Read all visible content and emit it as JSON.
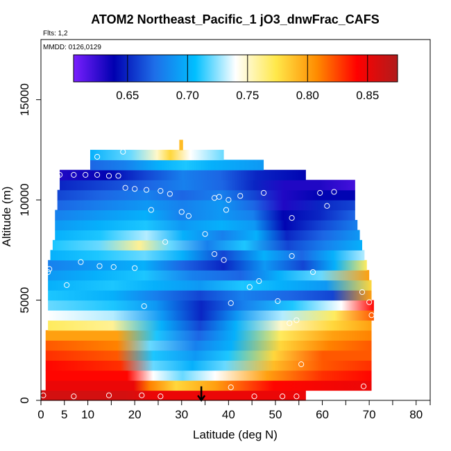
{
  "chart_data": {
    "type": "heatmap",
    "title": "ATOM2 Northeast_Pacific_1 jO3_dnwFrac_CAFS",
    "flights_label": "Flts: 1,2",
    "dates_label": "MMDD: 0126,0129",
    "xlabel": "Latitude (deg N)",
    "ylabel": "Altitude (m)",
    "xlim": [
      0,
      83
    ],
    "ylim": [
      0,
      18000
    ],
    "x_ticks": [
      0,
      5,
      10,
      20,
      30,
      40,
      50,
      60,
      70,
      80
    ],
    "x_minor_ticks": [
      15,
      25,
      35,
      45,
      55,
      65,
      75,
      83
    ],
    "y_ticks": [
      0,
      5000,
      10000,
      15000
    ],
    "colorbar": {
      "min": 0.605,
      "max": 0.875,
      "ticks": [
        "0.65",
        "0.70",
        "0.75",
        "0.80",
        "0.85"
      ],
      "tick_values": [
        0.65,
        0.7,
        0.75,
        0.8,
        0.85
      ],
      "colors": [
        "#7a1fff",
        "#0000b0",
        "#1e6ee8",
        "#00bfff",
        "#ffffff",
        "#ffe84a",
        "#ff8c00",
        "#ff0000",
        "#b01c1c"
      ]
    },
    "rows": [
      {
        "y0": 0,
        "y1": 500,
        "x0": 0,
        "x1": 56.5,
        "stops": [
          [
            0,
            0.86
          ],
          [
            0.32,
            0.86
          ],
          [
            0.42,
            0.85
          ],
          [
            0.7,
            0.85
          ],
          [
            1,
            0.85
          ]
        ]
      },
      {
        "y0": 500,
        "y1": 1000,
        "x0": 1,
        "x1": 70.5,
        "stops": [
          [
            0,
            0.85
          ],
          [
            0.27,
            0.85
          ],
          [
            0.32,
            0.81
          ],
          [
            0.4,
            0.78
          ],
          [
            0.52,
            0.8
          ],
          [
            0.7,
            0.84
          ],
          [
            1,
            0.85
          ]
        ]
      },
      {
        "y0": 1000,
        "y1": 1500,
        "x0": 1,
        "x1": 70.5,
        "stops": [
          [
            0,
            0.84
          ],
          [
            0.25,
            0.84
          ],
          [
            0.33,
            0.74
          ],
          [
            0.42,
            0.72
          ],
          [
            0.52,
            0.74
          ],
          [
            0.68,
            0.8
          ],
          [
            0.85,
            0.83
          ],
          [
            1,
            0.84
          ]
        ]
      },
      {
        "y0": 1500,
        "y1": 2000,
        "x0": 1,
        "x1": 70.5,
        "stops": [
          [
            0,
            0.84
          ],
          [
            0.23,
            0.83
          ],
          [
            0.33,
            0.72
          ],
          [
            0.45,
            0.7
          ],
          [
            0.55,
            0.72
          ],
          [
            0.7,
            0.79
          ],
          [
            0.85,
            0.82
          ],
          [
            1,
            0.83
          ]
        ]
      },
      {
        "y0": 2000,
        "y1": 2500,
        "x0": 1,
        "x1": 70.5,
        "stops": [
          [
            0,
            0.83
          ],
          [
            0.22,
            0.82
          ],
          [
            0.33,
            0.71
          ],
          [
            0.46,
            0.69
          ],
          [
            0.56,
            0.71
          ],
          [
            0.7,
            0.78
          ],
          [
            0.85,
            0.82
          ],
          [
            1,
            0.82
          ]
        ]
      },
      {
        "y0": 2500,
        "y1": 3000,
        "x0": 1,
        "x1": 70.5,
        "stops": [
          [
            0,
            0.82
          ],
          [
            0.22,
            0.81
          ],
          [
            0.32,
            0.72
          ],
          [
            0.46,
            0.68
          ],
          [
            0.57,
            0.7
          ],
          [
            0.72,
            0.78
          ],
          [
            0.87,
            0.81
          ],
          [
            1,
            0.82
          ]
        ]
      },
      {
        "y0": 3000,
        "y1": 3500,
        "x0": 1,
        "x1": 70.5,
        "stops": [
          [
            0,
            0.8
          ],
          [
            0.22,
            0.8
          ],
          [
            0.34,
            0.71
          ],
          [
            0.47,
            0.67
          ],
          [
            0.58,
            0.7
          ],
          [
            0.72,
            0.77
          ],
          [
            0.88,
            0.8
          ],
          [
            1,
            0.81
          ]
        ]
      },
      {
        "y0": 3500,
        "y1": 4000,
        "x0": 1.5,
        "x1": 70.5,
        "stops": [
          [
            0,
            0.77
          ],
          [
            0.2,
            0.76
          ],
          [
            0.35,
            0.7
          ],
          [
            0.47,
            0.66
          ],
          [
            0.58,
            0.7
          ],
          [
            0.72,
            0.75
          ],
          [
            0.88,
            0.78
          ],
          [
            1,
            0.8
          ]
        ]
      },
      {
        "y0": 4000,
        "y1": 4500,
        "x0": 1.5,
        "x1": 71,
        "stops": [
          [
            0,
            0.74
          ],
          [
            0.2,
            0.73
          ],
          [
            0.35,
            0.69
          ],
          [
            0.47,
            0.65
          ],
          [
            0.58,
            0.69
          ],
          [
            0.72,
            0.73
          ],
          [
            0.88,
            0.77
          ],
          [
            1,
            0.82
          ]
        ]
      },
      {
        "y0": 4500,
        "y1": 5000,
        "x0": 1.5,
        "x1": 71,
        "stops": [
          [
            0,
            0.72
          ],
          [
            0.2,
            0.71
          ],
          [
            0.33,
            0.69
          ],
          [
            0.47,
            0.65
          ],
          [
            0.6,
            0.68
          ],
          [
            0.75,
            0.71
          ],
          [
            0.9,
            0.74
          ],
          [
            1,
            0.84
          ]
        ]
      },
      {
        "y0": 5000,
        "y1": 5500,
        "x0": 1.5,
        "x1": 70.5,
        "stops": [
          [
            0,
            0.71
          ],
          [
            0.2,
            0.7
          ],
          [
            0.33,
            0.68
          ],
          [
            0.47,
            0.66
          ],
          [
            0.6,
            0.68
          ],
          [
            0.75,
            0.67
          ],
          [
            0.88,
            0.66
          ],
          [
            1,
            0.8
          ]
        ]
      },
      {
        "y0": 5500,
        "y1": 6000,
        "x0": 1.5,
        "x1": 70.5,
        "stops": [
          [
            0,
            0.7
          ],
          [
            0.2,
            0.71
          ],
          [
            0.33,
            0.7
          ],
          [
            0.47,
            0.69
          ],
          [
            0.6,
            0.71
          ],
          [
            0.72,
            0.7
          ],
          [
            0.86,
            0.69
          ],
          [
            1,
            0.78
          ]
        ]
      },
      {
        "y0": 6000,
        "y1": 6500,
        "x0": 1.5,
        "x1": 70,
        "stops": [
          [
            0,
            0.69
          ],
          [
            0.15,
            0.7
          ],
          [
            0.3,
            0.71
          ],
          [
            0.45,
            0.68
          ],
          [
            0.6,
            0.67
          ],
          [
            0.72,
            0.7
          ],
          [
            0.85,
            0.72
          ],
          [
            1,
            0.8
          ]
        ]
      },
      {
        "y0": 6500,
        "y1": 7000,
        "x0": 1.5,
        "x1": 69.5,
        "stops": [
          [
            0,
            0.68
          ],
          [
            0.15,
            0.69
          ],
          [
            0.3,
            0.7
          ],
          [
            0.42,
            0.67
          ],
          [
            0.55,
            0.65
          ],
          [
            0.68,
            0.69
          ],
          [
            0.8,
            0.66
          ],
          [
            0.9,
            0.7
          ],
          [
            1,
            0.77
          ]
        ]
      },
      {
        "y0": 7000,
        "y1": 7500,
        "x0": 2,
        "x1": 69,
        "stops": [
          [
            0,
            0.7
          ],
          [
            0.15,
            0.71
          ],
          [
            0.3,
            0.72
          ],
          [
            0.42,
            0.7
          ],
          [
            0.55,
            0.66
          ],
          [
            0.68,
            0.7
          ],
          [
            0.8,
            0.67
          ],
          [
            0.9,
            0.7
          ],
          [
            1,
            0.73
          ]
        ]
      },
      {
        "y0": 7500,
        "y1": 8000,
        "x0": 2.5,
        "x1": 68.5,
        "stops": [
          [
            0,
            0.71
          ],
          [
            0.15,
            0.72
          ],
          [
            0.28,
            0.76
          ],
          [
            0.38,
            0.72
          ],
          [
            0.5,
            0.68
          ],
          [
            0.62,
            0.71
          ],
          [
            0.76,
            0.66
          ],
          [
            0.88,
            0.68
          ],
          [
            1,
            0.7
          ]
        ]
      },
      {
        "y0": 8000,
        "y1": 8500,
        "x0": 3,
        "x1": 68,
        "stops": [
          [
            0,
            0.7
          ],
          [
            0.15,
            0.71
          ],
          [
            0.3,
            0.73
          ],
          [
            0.42,
            0.7
          ],
          [
            0.55,
            0.68
          ],
          [
            0.66,
            0.7
          ],
          [
            0.76,
            0.65
          ],
          [
            0.88,
            0.67
          ],
          [
            1,
            0.69
          ]
        ]
      },
      {
        "y0": 8500,
        "y1": 9000,
        "x0": 3,
        "x1": 67.5,
        "stops": [
          [
            0,
            0.69
          ],
          [
            0.15,
            0.7
          ],
          [
            0.3,
            0.71
          ],
          [
            0.42,
            0.69
          ],
          [
            0.55,
            0.7
          ],
          [
            0.66,
            0.69
          ],
          [
            0.76,
            0.64
          ],
          [
            0.88,
            0.66
          ],
          [
            1,
            0.68
          ]
        ]
      },
      {
        "y0": 9000,
        "y1": 9500,
        "x0": 3,
        "x1": 67,
        "stops": [
          [
            0,
            0.68
          ],
          [
            0.15,
            0.69
          ],
          [
            0.3,
            0.7
          ],
          [
            0.42,
            0.68
          ],
          [
            0.55,
            0.69
          ],
          [
            0.66,
            0.68
          ],
          [
            0.76,
            0.64
          ],
          [
            0.88,
            0.65
          ],
          [
            1,
            0.67
          ]
        ]
      },
      {
        "y0": 9500,
        "y1": 10000,
        "x0": 3.5,
        "x1": 67,
        "stops": [
          [
            0,
            0.67
          ],
          [
            0.15,
            0.68
          ],
          [
            0.3,
            0.69
          ],
          [
            0.42,
            0.68
          ],
          [
            0.55,
            0.69
          ],
          [
            0.66,
            0.67
          ],
          [
            0.76,
            0.63
          ],
          [
            0.88,
            0.65
          ],
          [
            1,
            0.66
          ]
        ]
      },
      {
        "y0": 10000,
        "y1": 10500,
        "x0": 3.5,
        "x1": 67,
        "stops": [
          [
            0,
            0.66
          ],
          [
            0.15,
            0.67
          ],
          [
            0.3,
            0.68
          ],
          [
            0.42,
            0.67
          ],
          [
            0.55,
            0.68
          ],
          [
            0.66,
            0.66
          ],
          [
            0.76,
            0.63
          ],
          [
            0.88,
            0.64
          ],
          [
            1,
            0.64
          ]
        ]
      },
      {
        "y0": 10500,
        "y1": 11000,
        "x0": 4,
        "x1": 67,
        "stops": [
          [
            0,
            0.65
          ],
          [
            0.15,
            0.66
          ],
          [
            0.3,
            0.67
          ],
          [
            0.42,
            0.68
          ],
          [
            0.55,
            0.67
          ],
          [
            0.66,
            0.65
          ],
          [
            0.76,
            0.63
          ],
          [
            0.88,
            0.63
          ],
          [
            1,
            0.62
          ]
        ]
      },
      {
        "y0": 11000,
        "y1": 11500,
        "x0": 4,
        "x1": 56.5,
        "stops": [
          [
            0,
            0.63
          ],
          [
            0.2,
            0.64
          ],
          [
            0.35,
            0.66
          ],
          [
            0.5,
            0.68
          ],
          [
            0.65,
            0.67
          ],
          [
            0.8,
            0.65
          ],
          [
            1,
            0.64
          ]
        ]
      },
      {
        "y0": 11500,
        "y1": 12000,
        "x0": 10.5,
        "x1": 47.5,
        "stops": [
          [
            0,
            0.67
          ],
          [
            0.2,
            0.68
          ],
          [
            0.4,
            0.7
          ],
          [
            0.55,
            0.71
          ],
          [
            0.7,
            0.7
          ],
          [
            1,
            0.69
          ]
        ]
      },
      {
        "y0": 12000,
        "y1": 12500,
        "x0": 10.5,
        "x1": 39,
        "stops": [
          [
            0,
            0.7
          ],
          [
            0.3,
            0.72
          ],
          [
            0.5,
            0.75
          ],
          [
            0.6,
            0.78
          ],
          [
            0.75,
            0.74
          ],
          [
            1,
            0.72
          ]
        ]
      },
      {
        "y0": 12500,
        "y1": 13000,
        "x0": 29.5,
        "x1": 30.3,
        "stops": [
          [
            0,
            0.79
          ],
          [
            1,
            0.79
          ]
        ]
      }
    ],
    "markers": [
      {
        "x": 0.5,
        "y": 250
      },
      {
        "x": 7,
        "y": 200
      },
      {
        "x": 14.5,
        "y": 250
      },
      {
        "x": 21.5,
        "y": 250
      },
      {
        "x": 25.5,
        "y": 200
      },
      {
        "x": 40.5,
        "y": 650
      },
      {
        "x": 45.5,
        "y": 200
      },
      {
        "x": 51.5,
        "y": 200
      },
      {
        "x": 54.5,
        "y": 200
      },
      {
        "x": 68.8,
        "y": 700
      },
      {
        "x": 55.5,
        "y": 1800
      },
      {
        "x": 53,
        "y": 3850
      },
      {
        "x": 54.5,
        "y": 4000
      },
      {
        "x": 70.5,
        "y": 4250
      },
      {
        "x": 50.5,
        "y": 4950
      },
      {
        "x": 40.5,
        "y": 4850
      },
      {
        "x": 22,
        "y": 4700
      },
      {
        "x": 70,
        "y": 4900
      },
      {
        "x": 5.5,
        "y": 5750
      },
      {
        "x": 44.5,
        "y": 5650
      },
      {
        "x": 46.5,
        "y": 5950
      },
      {
        "x": 68.5,
        "y": 5400
      },
      {
        "x": 1.5,
        "y": 6400
      },
      {
        "x": 1.8,
        "y": 6550
      },
      {
        "x": 58,
        "y": 6400
      },
      {
        "x": 8.5,
        "y": 6900
      },
      {
        "x": 12.5,
        "y": 6700
      },
      {
        "x": 15.5,
        "y": 6650
      },
      {
        "x": 20,
        "y": 6600
      },
      {
        "x": 39,
        "y": 7000
      },
      {
        "x": 37,
        "y": 7300
      },
      {
        "x": 53.5,
        "y": 7200
      },
      {
        "x": 26.5,
        "y": 7900
      },
      {
        "x": 35,
        "y": 8300
      },
      {
        "x": 30,
        "y": 9400
      },
      {
        "x": 31.5,
        "y": 9200
      },
      {
        "x": 23.5,
        "y": 9500
      },
      {
        "x": 39.5,
        "y": 9500
      },
      {
        "x": 53.5,
        "y": 9100
      },
      {
        "x": 61,
        "y": 9700
      },
      {
        "x": 18,
        "y": 10600
      },
      {
        "x": 20,
        "y": 10550
      },
      {
        "x": 22.5,
        "y": 10500
      },
      {
        "x": 25.5,
        "y": 10450
      },
      {
        "x": 27.5,
        "y": 10300
      },
      {
        "x": 37,
        "y": 10100
      },
      {
        "x": 38,
        "y": 10150
      },
      {
        "x": 40,
        "y": 10000
      },
      {
        "x": 42.5,
        "y": 10200
      },
      {
        "x": 47.5,
        "y": 10350
      },
      {
        "x": 59.5,
        "y": 10350
      },
      {
        "x": 62.5,
        "y": 10400
      },
      {
        "x": 3.5,
        "y": 11200
      },
      {
        "x": 4,
        "y": 11250
      },
      {
        "x": 7,
        "y": 11250
      },
      {
        "x": 9.5,
        "y": 11250
      },
      {
        "x": 12,
        "y": 11250
      },
      {
        "x": 14.5,
        "y": 11200
      },
      {
        "x": 16.5,
        "y": 11200
      },
      {
        "x": 68.5,
        "y": 10950
      },
      {
        "x": 12,
        "y": 12150
      },
      {
        "x": 17.5,
        "y": 12400
      }
    ],
    "arrow": {
      "x": 34.2,
      "y_top": 700,
      "y_bottom": 0
    }
  }
}
